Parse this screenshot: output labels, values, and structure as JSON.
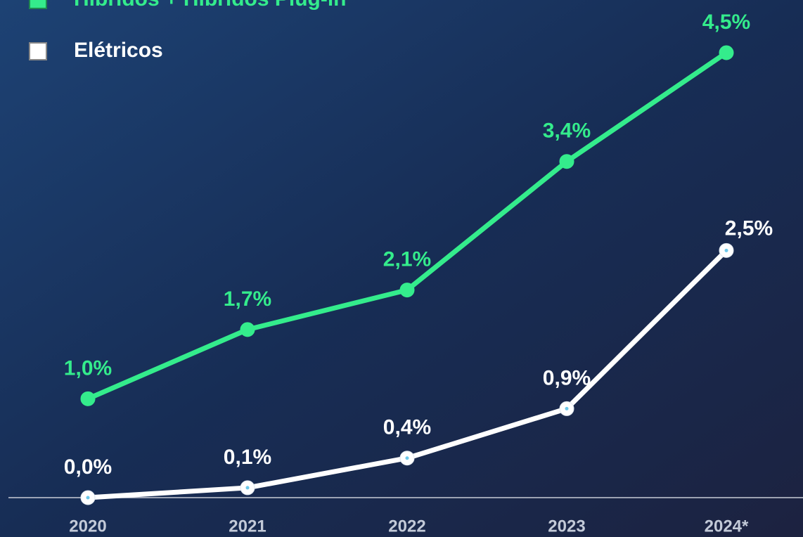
{
  "chart_data": {
    "type": "line",
    "categories": [
      "2020",
      "2021",
      "2022",
      "2023",
      "2024*"
    ],
    "series": [
      {
        "name": "Híbridos + Híbridos Plug-in",
        "color": "#34ec8c",
        "values": [
          1.0,
          1.7,
          2.1,
          3.4,
          4.5
        ],
        "value_labels": [
          "1,0%",
          "1,7%",
          "2,1%",
          "3,4%",
          "4,5%"
        ]
      },
      {
        "name": "Elétricos",
        "color": "#ffffff",
        "values": [
          0.0,
          0.1,
          0.4,
          0.9,
          2.5
        ],
        "value_labels": [
          "0,0%",
          "0,1%",
          "0,4%",
          "0,9%",
          "2,5%"
        ]
      }
    ]
  }
}
